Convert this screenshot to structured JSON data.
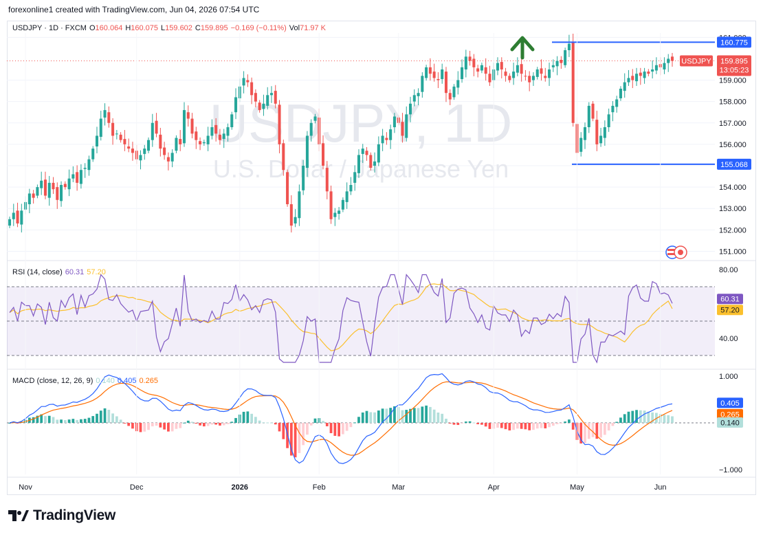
{
  "attribution": "forexonline1 created with TradingView.com, Jun 04, 2026 07:54 UTC",
  "header": {
    "symbol": "USDJPY · 1D · FXCM",
    "open_label": "O",
    "open": "160.064",
    "high_label": "H",
    "high": "160.075",
    "low_label": "L",
    "low": "159.602",
    "close_label": "C",
    "close": "159.895",
    "change": "−0.169 (−0.11%)",
    "vol_label": "Vol",
    "vol": "71.97 K"
  },
  "watermark": {
    "symbol": "USDJPY, 1D",
    "description": "U.S. Dollar / Japanese Yen"
  },
  "footer": {
    "brand": "TradingView"
  },
  "colors": {
    "up": "#26a69a",
    "down": "#ef5350",
    "line": "#2962ff",
    "rsi": "#7e57c2",
    "rsi_ma": "#fbc02d",
    "macd": "#2962ff",
    "signal": "#ff6d00",
    "arrow": "#2e7d32"
  },
  "chart_data": [
    {
      "type": "candlestick",
      "symbol": "USDJPY",
      "timeframe": "1D",
      "x_tick_labels": [
        "Nov",
        "Dec",
        "2026",
        "Feb",
        "Mar",
        "Apr",
        "May",
        "Jun"
      ],
      "y_tick_labels": [
        "161.000",
        "159.000",
        "158.000",
        "157.000",
        "156.000",
        "155.000",
        "154.000",
        "153.000",
        "152.000",
        "151.000"
      ],
      "ylim": [
        150.5,
        161.3
      ],
      "close_path": [
        152.5,
        152.8,
        152.3,
        152.9,
        153.3,
        153.7,
        153.5,
        154.0,
        154.3,
        153.6,
        154.2,
        153.9,
        153.4,
        154.1,
        154.0,
        154.4,
        154.6,
        154.2,
        154.8,
        154.9,
        155.3,
        155.8,
        156.4,
        157.2,
        157.6,
        157.0,
        156.4,
        156.5,
        156.2,
        156.0,
        155.8,
        155.6,
        155.3,
        155.5,
        155.8,
        156.2,
        157.0,
        156.5,
        155.8,
        155.5,
        155.2,
        155.6,
        156.3,
        156.0,
        157.6,
        157.2,
        156.5,
        156.2,
        156.0,
        156.1,
        156.4,
        156.8,
        156.5,
        156.2,
        156.5,
        156.8,
        157.4,
        158.2,
        158.7,
        159.1,
        158.9,
        158.3,
        158.0,
        157.6,
        157.9,
        158.3,
        158.4,
        157.9,
        156.0,
        154.8,
        153.2,
        152.2,
        152.6,
        153.8,
        155.0,
        156.4,
        157.0,
        157.3,
        156.0,
        155.0,
        153.8,
        152.5,
        152.8,
        152.9,
        153.4,
        153.8,
        154.1,
        154.7,
        155.5,
        155.8,
        155.5,
        154.9,
        155.2,
        156.0,
        156.4,
        156.2,
        156.7,
        157.3,
        157.0,
        156.4,
        157.4,
        157.9,
        158.3,
        158.4,
        159.2,
        159.6,
        159.3,
        159.1,
        159.0,
        159.5,
        158.4,
        158.1,
        158.7,
        159.0,
        159.6,
        160.1,
        159.9,
        159.6,
        159.4,
        159.7,
        159.3,
        158.9,
        159.5,
        159.8,
        159.5,
        159.2,
        159.0,
        159.4,
        159.7,
        159.3,
        159.2,
        158.9,
        159.2,
        159.5,
        159.3,
        159.1,
        159.5,
        159.7,
        159.9,
        159.8,
        160.4,
        160.7,
        157.0,
        155.6,
        156.3,
        156.8,
        157.8,
        157.2,
        156.0,
        156.4,
        156.8,
        157.4,
        157.8,
        158.1,
        158.6,
        158.9,
        159.1,
        159.0,
        159.3,
        159.2,
        159.4,
        159.3,
        159.5,
        159.7,
        159.6,
        159.8,
        160.0,
        159.9
      ],
      "levels": [
        {
          "label": "160.775",
          "value": 160.775
        },
        {
          "label": "155.068",
          "value": 155.068
        }
      ],
      "last_price": {
        "label": "USDJPY",
        "value": "159.895",
        "countdown": "13:05:23"
      },
      "annotation": "green up arrow at the late-April high"
    },
    {
      "type": "line",
      "name": "RSI (14, close)",
      "legend": [
        "RSI (14, close)",
        "60.31",
        "57.20"
      ],
      "y_tick_labels": [
        "80.00",
        "40.00"
      ],
      "ylim": [
        24,
        84
      ],
      "bands": [
        70,
        50,
        30
      ],
      "last_values": {
        "rsi": "60.31",
        "rsi_ma": "57.20"
      }
    },
    {
      "type": "bar",
      "name": "MACD (close, 12, 26, 9)",
      "legend": [
        "MACD (close, 12, 26, 9)",
        "0.140",
        "0.405",
        "0.265"
      ],
      "y_tick_labels": [
        "1.000",
        "0.000",
        "−1.000"
      ],
      "ylim": [
        -1.1,
        1.1
      ],
      "last_values": {
        "histogram": "0.140",
        "macd": "0.405",
        "signal": "0.265"
      }
    }
  ]
}
